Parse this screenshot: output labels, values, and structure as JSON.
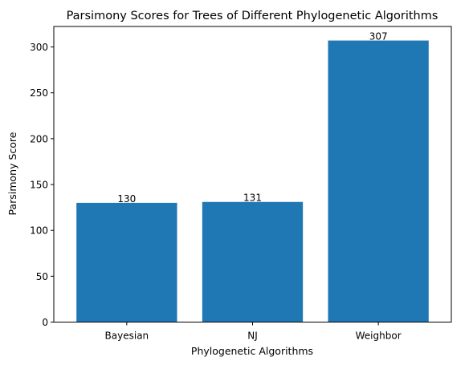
{
  "chart_data": {
    "type": "bar",
    "title": "Parsimony Scores for Trees of Different Phylogenetic Algorithms",
    "xlabel": "Phylogenetic Algorithms",
    "ylabel": "Parsimony Score",
    "categories": [
      "Bayesian",
      "NJ",
      "Weighbor"
    ],
    "values": [
      130,
      131,
      307
    ],
    "data_labels": [
      "130",
      "131",
      "307"
    ],
    "ylim": [
      0,
      322.35
    ],
    "yticks": [
      0,
      50,
      100,
      150,
      200,
      250,
      300
    ],
    "ytick_labels": [
      "0",
      "50",
      "100",
      "150",
      "200",
      "250",
      "300"
    ],
    "bar_color": "#1f77b4",
    "grid": false,
    "legend": "none"
  }
}
